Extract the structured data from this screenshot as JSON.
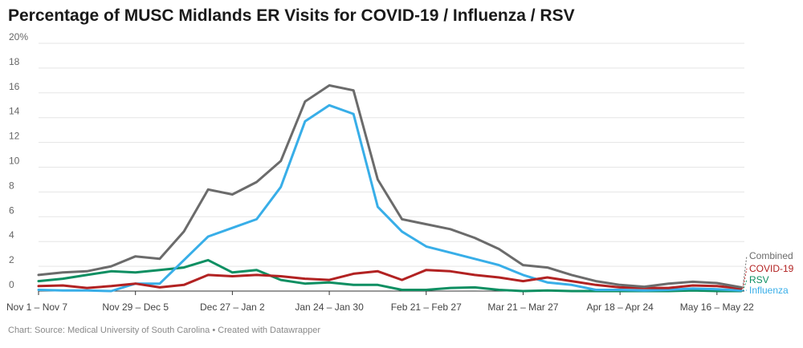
{
  "title": "Percentage of MUSC Midlands ER Visits for COVID-19 / Influenza / RSV",
  "footer": {
    "source": "Chart: Source: Medical University of South Carolina",
    "separator": " • ",
    "credit": "Created with Datawrapper"
  },
  "colors": {
    "combined": "#6b6b6b",
    "covid": "#b22222",
    "rsv": "#0e8f62",
    "influenza": "#38aee8",
    "grid": "#e5e5e5",
    "axis": "#333333"
  },
  "chart_data": {
    "type": "line",
    "title": "Percentage of MUSC Midlands ER Visits for COVID-19 / Influenza / RSV",
    "xlabel": "",
    "ylabel": "",
    "ylim": [
      0,
      20
    ],
    "yticks": [
      0,
      2,
      4,
      6,
      8,
      10,
      12,
      14,
      16,
      18,
      20
    ],
    "ytick_labels": [
      "0",
      "2",
      "4",
      "6",
      "8",
      "10",
      "12",
      "14",
      "16",
      "18",
      "20%"
    ],
    "grid": "horizontal",
    "legend": "inline labels at right end of lines",
    "weeks": 30,
    "xtick_labels": [
      {
        "week": 0,
        "label": "Nov 1 – Nov 7"
      },
      {
        "week": 4,
        "label": "Nov 29 – Dec 5"
      },
      {
        "week": 8,
        "label": "Dec 27 – Jan 2"
      },
      {
        "week": 12,
        "label": "Jan 24 – Jan 30"
      },
      {
        "week": 16,
        "label": "Feb 21 – Feb 27"
      },
      {
        "week": 20,
        "label": "Mar 21 – Mar 27"
      },
      {
        "week": 24,
        "label": "Apr 18 – Apr 24"
      },
      {
        "week": 28,
        "label": "May 16 – May 22"
      }
    ],
    "series": [
      {
        "name": "Combined",
        "key": "combined",
        "values": [
          1.3,
          1.5,
          1.6,
          2.0,
          2.8,
          2.6,
          4.8,
          8.2,
          7.8,
          8.8,
          10.5,
          15.3,
          16.6,
          16.2,
          9.0,
          5.8,
          5.4,
          5.0,
          4.3,
          3.4,
          2.1,
          1.9,
          1.3,
          0.8,
          0.5,
          0.35,
          0.6,
          0.75,
          0.65,
          0.3
        ]
      },
      {
        "name": "COVID-19",
        "key": "covid",
        "values": [
          0.4,
          0.45,
          0.25,
          0.4,
          0.6,
          0.3,
          0.5,
          1.3,
          1.2,
          1.3,
          1.2,
          1.0,
          0.9,
          1.4,
          1.6,
          0.9,
          1.7,
          1.6,
          1.3,
          1.1,
          0.8,
          1.1,
          0.8,
          0.5,
          0.3,
          0.25,
          0.25,
          0.45,
          0.4,
          0.2
        ]
      },
      {
        "name": "RSV",
        "key": "rsv",
        "values": [
          0.8,
          1.0,
          1.3,
          1.6,
          1.5,
          1.7,
          1.9,
          2.5,
          1.5,
          1.7,
          0.9,
          0.6,
          0.7,
          0.5,
          0.5,
          0.1,
          0.1,
          0.25,
          0.3,
          0.1,
          0.0,
          0.05,
          0.0,
          0.0,
          0.0,
          0.0,
          0.0,
          0.05,
          0.0,
          0.0
        ]
      },
      {
        "name": "Influenza",
        "key": "influenza",
        "values": [
          0.1,
          0.05,
          0.05,
          0.0,
          0.6,
          0.6,
          2.5,
          4.4,
          5.1,
          5.8,
          8.4,
          13.7,
          15.0,
          14.3,
          6.8,
          4.8,
          3.6,
          3.1,
          2.6,
          2.1,
          1.3,
          0.7,
          0.5,
          0.1,
          0.1,
          0.05,
          0.1,
          0.2,
          0.15,
          0.05
        ]
      }
    ]
  }
}
